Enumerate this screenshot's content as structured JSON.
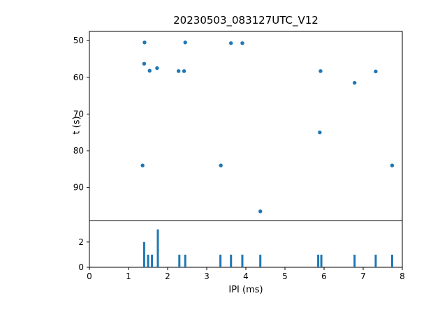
{
  "title": "20230503_083127UTC_V12",
  "xlabel": "IPI (ms)",
  "ylabel": "t (s)",
  "accent_color": "#1f77b4",
  "chart_data": {
    "type": "scatter",
    "title": "20230503_083127UTC_V12",
    "xlabel": "IPI (ms)",
    "ylabel": "t (s)",
    "xlim": [
      0,
      8
    ],
    "x_ticks": [
      0,
      1,
      2,
      3,
      4,
      5,
      6,
      7,
      8
    ],
    "top_panel": {
      "type": "scatter",
      "y_inverted": true,
      "ylim_top_to_bottom": [
        47.5,
        99
      ],
      "y_ticks": [
        50,
        60,
        70,
        80,
        90
      ],
      "points": [
        {
          "x": 1.41,
          "y": 50.5
        },
        {
          "x": 2.45,
          "y": 50.5
        },
        {
          "x": 3.62,
          "y": 50.7
        },
        {
          "x": 3.91,
          "y": 50.7
        },
        {
          "x": 1.4,
          "y": 56.3
        },
        {
          "x": 1.54,
          "y": 58.2
        },
        {
          "x": 1.73,
          "y": 57.5
        },
        {
          "x": 2.28,
          "y": 58.3
        },
        {
          "x": 2.42,
          "y": 58.3
        },
        {
          "x": 5.91,
          "y": 58.3
        },
        {
          "x": 7.32,
          "y": 58.4
        },
        {
          "x": 6.78,
          "y": 61.5
        },
        {
          "x": 5.89,
          "y": 75.0
        },
        {
          "x": 1.36,
          "y": 84.0
        },
        {
          "x": 3.36,
          "y": 84.0
        },
        {
          "x": 7.74,
          "y": 84.0
        },
        {
          "x": 4.37,
          "y": 96.5
        }
      ]
    },
    "bottom_panel": {
      "type": "bar",
      "ylim": [
        0,
        3.7
      ],
      "y_ticks": [
        0,
        2
      ],
      "bars": [
        {
          "x": 1.4,
          "h": 2
        },
        {
          "x": 1.5,
          "h": 1
        },
        {
          "x": 1.6,
          "h": 1
        },
        {
          "x": 1.75,
          "h": 3
        },
        {
          "x": 2.3,
          "h": 1
        },
        {
          "x": 2.45,
          "h": 1
        },
        {
          "x": 3.35,
          "h": 1
        },
        {
          "x": 3.62,
          "h": 1
        },
        {
          "x": 3.91,
          "h": 1
        },
        {
          "x": 4.37,
          "h": 1
        },
        {
          "x": 5.85,
          "h": 1
        },
        {
          "x": 5.93,
          "h": 1
        },
        {
          "x": 6.78,
          "h": 1
        },
        {
          "x": 7.32,
          "h": 1
        },
        {
          "x": 7.74,
          "h": 1
        }
      ]
    }
  }
}
